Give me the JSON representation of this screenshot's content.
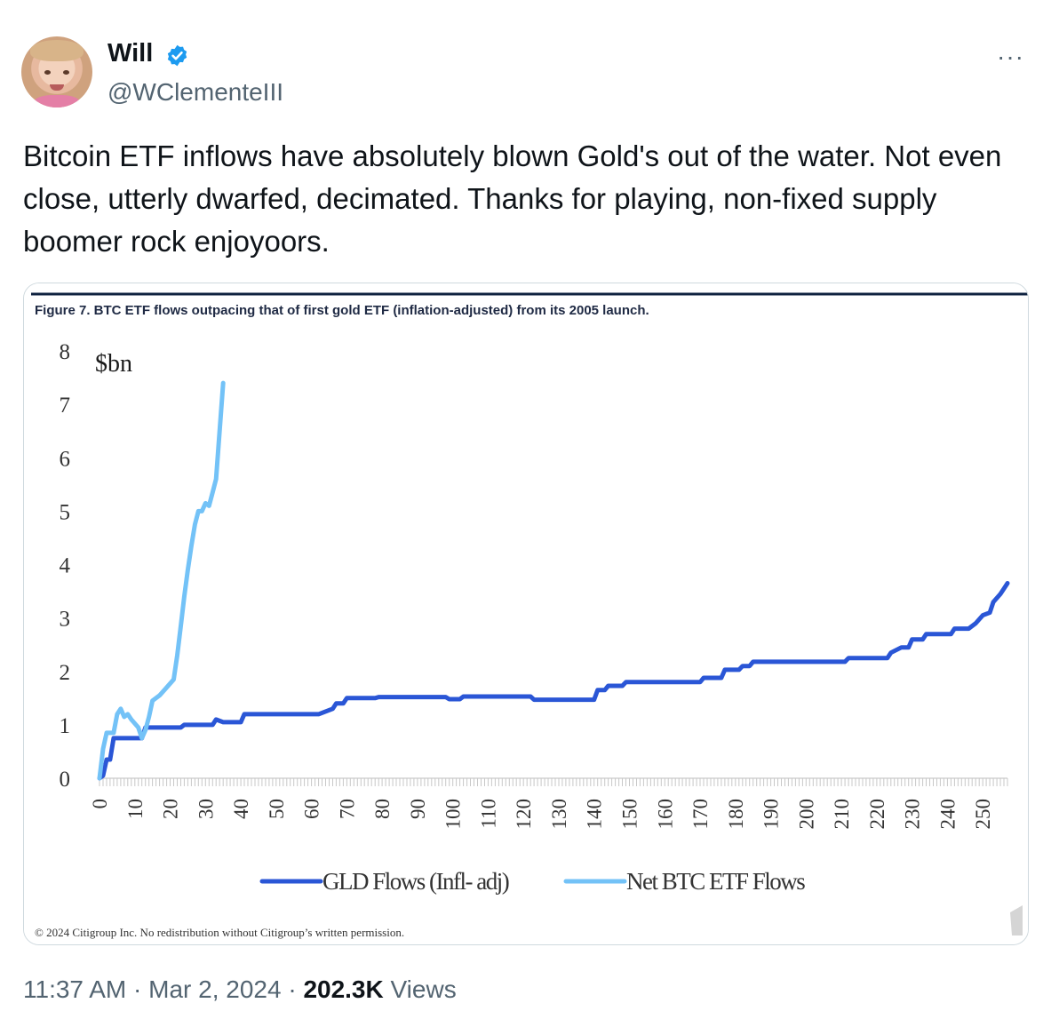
{
  "tweet": {
    "author_name": "Will",
    "handle": "@WClementeIII",
    "text": "Bitcoin ETF inflows have absolutely blown Gold's out of the water. Not even close, utterly dwarfed, decimated. Thanks for playing, non-fixed supply boomer rock enjoyoors.",
    "more_icon": "···",
    "time": "11:37 AM",
    "date": "Mar 2, 2024",
    "separator": "·",
    "views_count": "202.3K",
    "views_label": "Views",
    "verified_color": "#1d9bf0"
  },
  "chart_data": {
    "type": "line",
    "title": "Figure 7. BTC ETF flows outpacing that of first gold ETF (inflation-adjusted) from its 2005 launch.",
    "unit_label": "$bn",
    "ylim": [
      0,
      8
    ],
    "y_ticks": [
      "0",
      "1",
      "2",
      "3",
      "4",
      "5",
      "6",
      "7",
      "8"
    ],
    "xlim": [
      0,
      257
    ],
    "x_ticks": [
      "0",
      "10",
      "20",
      "30",
      "40",
      "50",
      "60",
      "70",
      "80",
      "90",
      "100",
      "110",
      "120",
      "130",
      "140",
      "150",
      "160",
      "170",
      "180",
      "190",
      "200",
      "210",
      "220",
      "230",
      "240",
      "250"
    ],
    "legend_position": "bottom",
    "source_note": "© 2024 Citigroup Inc. No redistribution without Citigroup’s written permission.",
    "series": [
      {
        "name": "GLD Flows (Infl- adj)",
        "color": "#2a56d6",
        "points": [
          [
            0,
            0
          ],
          [
            1,
            0.05
          ],
          [
            2,
            0.35
          ],
          [
            3,
            0.35
          ],
          [
            4,
            0.75
          ],
          [
            12,
            0.75
          ],
          [
            13,
            0.95
          ],
          [
            23,
            0.95
          ],
          [
            24,
            1.0
          ],
          [
            32,
            1.0
          ],
          [
            33,
            1.1
          ],
          [
            35,
            1.05
          ],
          [
            40,
            1.05
          ],
          [
            41,
            1.2
          ],
          [
            62,
            1.2
          ],
          [
            66,
            1.3
          ],
          [
            67,
            1.4
          ],
          [
            69,
            1.4
          ],
          [
            70,
            1.5
          ],
          [
            78,
            1.5
          ],
          [
            79,
            1.52
          ],
          [
            98,
            1.52
          ],
          [
            99,
            1.48
          ],
          [
            102,
            1.48
          ],
          [
            103,
            1.53
          ],
          [
            122,
            1.53
          ],
          [
            123,
            1.47
          ],
          [
            140,
            1.47
          ],
          [
            141,
            1.65
          ],
          [
            143,
            1.65
          ],
          [
            144,
            1.73
          ],
          [
            148,
            1.73
          ],
          [
            149,
            1.8
          ],
          [
            170,
            1.8
          ],
          [
            171,
            1.88
          ],
          [
            176,
            1.88
          ],
          [
            177,
            2.03
          ],
          [
            181,
            2.03
          ],
          [
            182,
            2.1
          ],
          [
            184,
            2.1
          ],
          [
            185,
            2.18
          ],
          [
            211,
            2.18
          ],
          [
            212,
            2.25
          ],
          [
            223,
            2.25
          ],
          [
            224,
            2.35
          ],
          [
            227,
            2.45
          ],
          [
            229,
            2.45
          ],
          [
            230,
            2.6
          ],
          [
            233,
            2.6
          ],
          [
            234,
            2.7
          ],
          [
            241,
            2.7
          ],
          [
            242,
            2.8
          ],
          [
            246,
            2.8
          ],
          [
            248,
            2.9
          ],
          [
            250,
            3.05
          ],
          [
            252,
            3.1
          ],
          [
            253,
            3.3
          ],
          [
            255,
            3.45
          ],
          [
            256,
            3.55
          ],
          [
            257,
            3.65
          ]
        ]
      },
      {
        "name": "Net BTC ETF Flows",
        "color": "#73c2f7",
        "points": [
          [
            0,
            0
          ],
          [
            1,
            0.55
          ],
          [
            2,
            0.85
          ],
          [
            4,
            0.85
          ],
          [
            5,
            1.2
          ],
          [
            6,
            1.3
          ],
          [
            7,
            1.15
          ],
          [
            8,
            1.2
          ],
          [
            9,
            1.1
          ],
          [
            11,
            0.95
          ],
          [
            12,
            0.75
          ],
          [
            13,
            0.9
          ],
          [
            14,
            1.15
          ],
          [
            15,
            1.45
          ],
          [
            17,
            1.55
          ],
          [
            19,
            1.7
          ],
          [
            21,
            1.85
          ],
          [
            22,
            2.3
          ],
          [
            23,
            2.85
          ],
          [
            24,
            3.4
          ],
          [
            25,
            3.9
          ],
          [
            26,
            4.35
          ],
          [
            27,
            4.75
          ],
          [
            28,
            5.0
          ],
          [
            29,
            5.0
          ],
          [
            30,
            5.15
          ],
          [
            31,
            5.1
          ],
          [
            32,
            5.35
          ],
          [
            33,
            5.6
          ],
          [
            34,
            6.5
          ],
          [
            35,
            7.4
          ]
        ]
      }
    ]
  }
}
